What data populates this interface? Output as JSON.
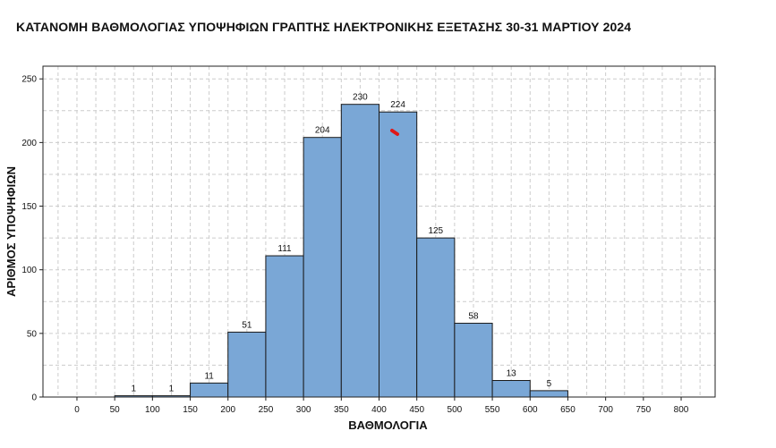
{
  "chart_data": {
    "type": "bar",
    "title": "ΚΑΤΑΝΟΜΗ ΒΑΘΜΟΛΟΓΙΑΣ ΥΠΟΨΗΦΙΩΝ ΓΡΑΠΤΗΣ ΗΛΕΚΤΡΟΝΙΚΗΣ ΕΞΕΤΑΣΗΣ 30-31 ΜΑΡΤΙΟΥ 2024",
    "xlabel": "ΒΑΘΜΟΛΟΓΙΑ",
    "ylabel": "ΑΡΙΘΜΟΣ ΥΠΟΨΗΦΙΩΝ",
    "bin_width": 50,
    "bins": [
      {
        "start": 50,
        "end": 100,
        "value": 1
      },
      {
        "start": 100,
        "end": 150,
        "value": 1
      },
      {
        "start": 150,
        "end": 200,
        "value": 11
      },
      {
        "start": 200,
        "end": 250,
        "value": 51
      },
      {
        "start": 250,
        "end": 300,
        "value": 111
      },
      {
        "start": 300,
        "end": 350,
        "value": 204
      },
      {
        "start": 350,
        "end": 400,
        "value": 230
      },
      {
        "start": 400,
        "end": 450,
        "value": 224
      },
      {
        "start": 450,
        "end": 500,
        "value": 125
      },
      {
        "start": 500,
        "end": 550,
        "value": 58
      },
      {
        "start": 550,
        "end": 600,
        "value": 13
      },
      {
        "start": 600,
        "end": 650,
        "value": 5
      }
    ],
    "xlim": [
      -45,
      845
    ],
    "ylim": [
      0,
      260
    ],
    "x_ticks": [
      "0",
      "50",
      "100",
      "150",
      "200",
      "250",
      "300",
      "350",
      "400",
      "450",
      "500",
      "550",
      "600",
      "650",
      "700",
      "750",
      "800"
    ],
    "y_ticks": [
      "0",
      "50",
      "100",
      "150",
      "200",
      "250"
    ],
    "grid": true,
    "bar_color": "#7aa7d6",
    "bar_edge_color": "#1a1a1a",
    "grid_color": "#cccccc"
  }
}
